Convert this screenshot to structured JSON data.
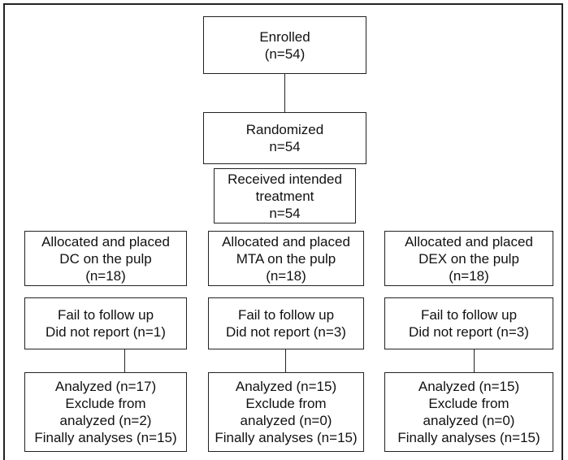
{
  "enrolled": {
    "line1": "Enrolled",
    "line2": "(n=54)"
  },
  "randomized": {
    "line1": "Randomized",
    "line2": "n=54"
  },
  "received": {
    "line1": "Received intended",
    "line2": "treatment",
    "line3": "n=54"
  },
  "arms": [
    {
      "allocation": {
        "line1": "Allocated and placed",
        "line2": "DC on the pulp",
        "line3": "(n=18)"
      },
      "followup": {
        "line1": "Fail to follow up",
        "line2": "Did not report (n=1)"
      },
      "analysis": {
        "line1": "Analyzed (n=17)",
        "line2": "Exclude from",
        "line3": "analyzed (n=2)",
        "line4": "Finally analyses (n=15)"
      }
    },
    {
      "allocation": {
        "line1": "Allocated and placed",
        "line2": "MTA on the pulp",
        "line3": "(n=18)"
      },
      "followup": {
        "line1": "Fail to follow up",
        "line2": "Did not report (n=3)"
      },
      "analysis": {
        "line1": "Analyzed (n=15)",
        "line2": "Exclude from",
        "line3": "analyzed (n=0)",
        "line4": "Finally analyses (n=15)"
      }
    },
    {
      "allocation": {
        "line1": "Allocated and placed",
        "line2": "DEX on the pulp",
        "line3": "(n=18)"
      },
      "followup": {
        "line1": "Fail to follow up",
        "line2": "Did not report (n=3)"
      },
      "analysis": {
        "line1": "Analyzed (n=15)",
        "line2": "Exclude from",
        "line3": "analyzed (n=0)",
        "line4": "Finally analyses (n=15)"
      }
    }
  ]
}
